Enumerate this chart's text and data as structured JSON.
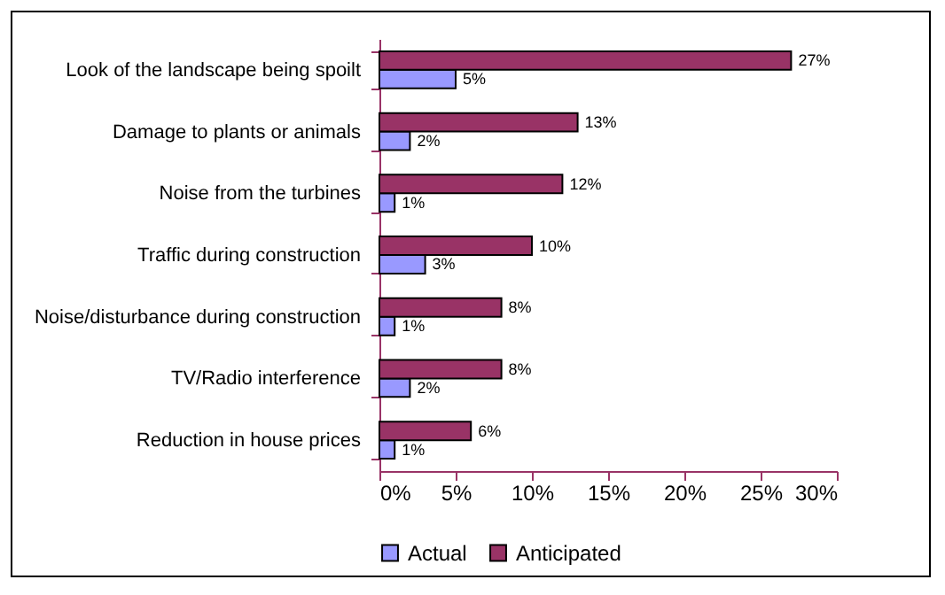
{
  "chart_data": {
    "type": "bar",
    "orientation": "horizontal",
    "categories": [
      "Look of the landscape being spoilt",
      "Damage to plants or animals",
      "Noise from the turbines",
      "Traffic during construction",
      "Noise/disturbance during construction",
      "TV/Radio interference",
      "Reduction in house prices"
    ],
    "series": [
      {
        "name": "Actual",
        "color": "#9999ff",
        "values": [
          5,
          2,
          1,
          3,
          1,
          2,
          1
        ],
        "value_labels": [
          "5%",
          "2%",
          "1%",
          "3%",
          "1%",
          "2%",
          "1%"
        ]
      },
      {
        "name": "Anticipated",
        "color": "#993366",
        "values": [
          27,
          13,
          12,
          10,
          8,
          8,
          6
        ],
        "value_labels": [
          "27%",
          "13%",
          "12%",
          "10%",
          "8%",
          "8%",
          "6%"
        ]
      }
    ],
    "xlim": [
      0,
      30
    ],
    "xticks": [
      {
        "value": 0,
        "label": "0%"
      },
      {
        "value": 5,
        "label": "5%"
      },
      {
        "value": 10,
        "label": "10%"
      },
      {
        "value": 15,
        "label": "15%"
      },
      {
        "value": 20,
        "label": "20%"
      },
      {
        "value": 25,
        "label": "25%"
      },
      {
        "value": 30,
        "label": "30%"
      }
    ],
    "grid": false,
    "legend": "bottom"
  }
}
